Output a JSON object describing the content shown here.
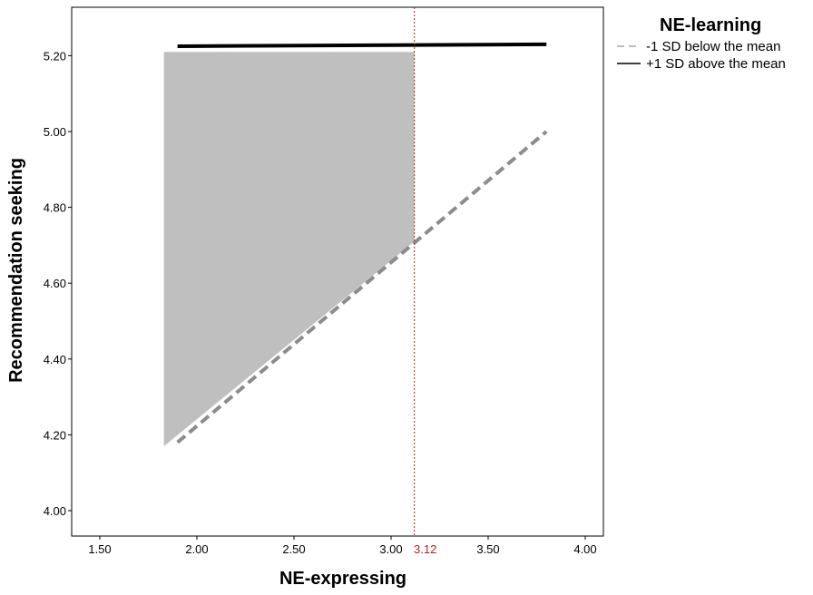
{
  "chart_data": {
    "type": "line",
    "xlabel": "NE-expressing",
    "ylabel": "Recommendation seeking",
    "xlim": [
      1.5,
      4.0
    ],
    "ylim": [
      4.0,
      5.25
    ],
    "x_ticks": [
      "1.50",
      "2.00",
      "2.50",
      "3.00",
      "3.50",
      "4.00"
    ],
    "y_ticks": [
      "4.00",
      "4.20",
      "4.40",
      "4.60",
      "4.80",
      "5.00",
      "5.20"
    ],
    "legend_title": "NE-learning",
    "legend_position": "right",
    "grid": false,
    "series": [
      {
        "name": "-1 SD below the mean",
        "style": "dashed",
        "color": "#8c8c8c",
        "x": [
          1.9,
          3.8
        ],
        "y": [
          4.18,
          5.0
        ]
      },
      {
        "name": "+1 SD above the mean",
        "style": "solid",
        "color": "#000000",
        "x": [
          1.9,
          3.8
        ],
        "y": [
          5.225,
          5.23
        ]
      }
    ],
    "shaded_region": {
      "color": "#bfbfbf",
      "x": [
        1.83,
        3.12,
        3.12,
        1.83
      ],
      "y": [
        5.21,
        5.21,
        4.71,
        4.17
      ]
    },
    "reference_line": {
      "x": 3.12,
      "label": "3.12",
      "color": "#b22222",
      "style": "dotted"
    }
  }
}
